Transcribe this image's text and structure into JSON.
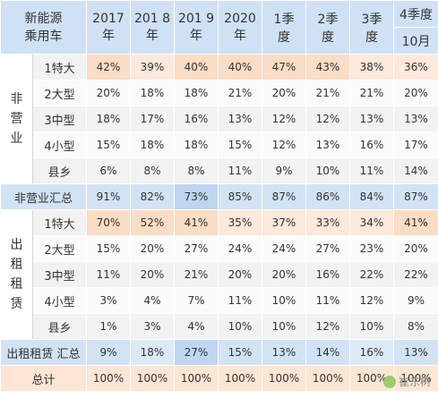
{
  "header": {
    "corner": [
      "新能源",
      "乘用车"
    ],
    "columns": [
      [
        "2017",
        "年"
      ],
      [
        "201 8",
        "年"
      ],
      [
        "201 9",
        "年"
      ],
      [
        "2020",
        "年"
      ],
      [
        "1季",
        "度"
      ],
      [
        "2季",
        "度"
      ],
      [
        "3季",
        "度"
      ],
      [
        "4季度",
        "10月"
      ]
    ]
  },
  "groups": [
    {
      "label": [
        "非",
        "营",
        "业"
      ],
      "rows": [
        {
          "label": "1特大",
          "values": [
            "42%",
            "39%",
            "40%",
            "40%",
            "47%",
            "43%",
            "38%",
            "36%"
          ]
        },
        {
          "label": "2大型",
          "values": [
            "20%",
            "18%",
            "18%",
            "21%",
            "20%",
            "21%",
            "21%",
            "20%"
          ]
        },
        {
          "label": "3中型",
          "values": [
            "18%",
            "17%",
            "16%",
            "13%",
            "12%",
            "12%",
            "13%",
            "13%"
          ]
        },
        {
          "label": "4小型",
          "values": [
            "15%",
            "18%",
            "18%",
            "15%",
            "12%",
            "13%",
            "16%",
            "17%"
          ]
        },
        {
          "label": "县乡",
          "values": [
            "6%",
            "8%",
            "8%",
            "11%",
            "9%",
            "10%",
            "11%",
            "14%"
          ]
        }
      ],
      "summary": {
        "label": "非营业汇总",
        "values": [
          "91%",
          "82%",
          "73%",
          "85%",
          "87%",
          "86%",
          "84%",
          "87%"
        ]
      }
    },
    {
      "label": [
        "出",
        "租",
        "租",
        "赁"
      ],
      "rows": [
        {
          "label": "1特大",
          "values": [
            "70%",
            "52%",
            "41%",
            "35%",
            "37%",
            "33%",
            "34%",
            "41%"
          ]
        },
        {
          "label": "2大型",
          "values": [
            "15%",
            "20%",
            "27%",
            "24%",
            "24%",
            "27%",
            "23%",
            "20%"
          ]
        },
        {
          "label": "3中型",
          "values": [
            "11%",
            "20%",
            "21%",
            "20%",
            "20%",
            "16%",
            "22%",
            "22%"
          ]
        },
        {
          "label": "4小型",
          "values": [
            "3%",
            "4%",
            "7%",
            "11%",
            "10%",
            "11%",
            "12%",
            "9%"
          ]
        },
        {
          "label": "县乡",
          "values": [
            "1%",
            "3%",
            "4%",
            "10%",
            "10%",
            "12%",
            "10%",
            "8%"
          ]
        }
      ],
      "summary": {
        "label": "出租租赁 汇总",
        "values": [
          "9%",
          "18%",
          "27%",
          "15%",
          "13%",
          "14%",
          "16%",
          "13%"
        ]
      }
    }
  ],
  "total": {
    "label": "总计",
    "values": [
      "100%",
      "100%",
      "100%",
      "100%",
      "100%",
      "100%",
      "100%",
      "100%"
    ]
  },
  "watermark": "崔东树",
  "colors": {
    "header": "#cfe1f5",
    "summary": "#d2e3f5",
    "total": "#fde6d4",
    "heat": "#fbdcc4"
  }
}
